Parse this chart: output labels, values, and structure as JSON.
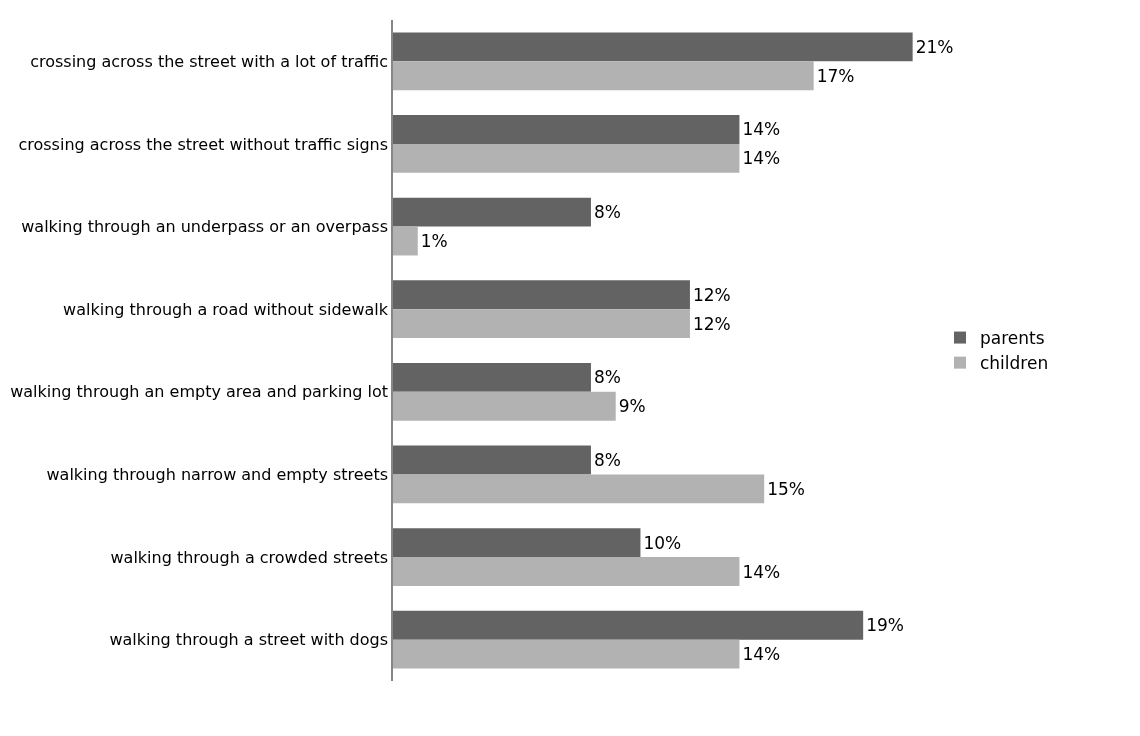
{
  "chart_data": {
    "type": "bar",
    "orientation": "horizontal",
    "categories": [
      "crossing across the street with a lot of traffic",
      "crossing across the street without traffic signs",
      "walking through an underpass or an overpass",
      "walking through a road without sidewalk",
      "walking through an empty area and parking lot",
      "walking through narrow and empty streets",
      "walking through a crowded streets",
      "walking through a street with dogs"
    ],
    "series": [
      {
        "name": "parents",
        "color": "#636363",
        "values": [
          21,
          14,
          8,
          12,
          8,
          8,
          10,
          19
        ],
        "value_labels": [
          "21%",
          "14%",
          "8%",
          "12%",
          "8%",
          "8%",
          "10%",
          "19%"
        ]
      },
      {
        "name": "children",
        "color": "#b2b2b2",
        "values": [
          17,
          14,
          1,
          12,
          9,
          15,
          14,
          14
        ],
        "value_labels": [
          "17%",
          "14%",
          "1%",
          "12%",
          "9%",
          "15%",
          "14%",
          "14%"
        ]
      }
    ],
    "tick_labels": "y",
    "legend": "right"
  }
}
